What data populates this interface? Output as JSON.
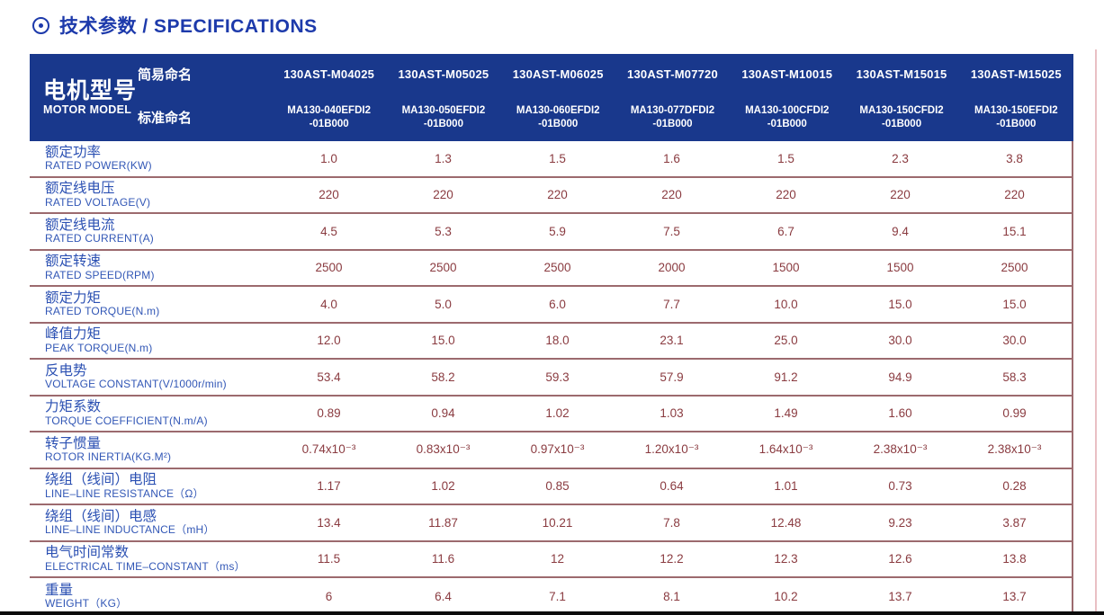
{
  "page": {
    "title": "技术参数 / SPECIFICATIONS"
  },
  "colors": {
    "header_bg": "#19388c",
    "title_blue": "#1d3aab",
    "label_blue": "#2c51b3",
    "value_maroon": "#8a3b40",
    "separator": "#9c6a6e"
  },
  "table": {
    "model_label_cn": "电机型号",
    "model_label_en": "MOTOR MODEL",
    "simple_name_label": "简易命名",
    "standard_name_label": "标准命名",
    "columns": [
      {
        "simple": "130AST-M04025",
        "standard_line1": "MA130-040EFDI2",
        "standard_line2": "-01B000"
      },
      {
        "simple": "130AST-M05025",
        "standard_line1": "MA130-050EFDI2",
        "standard_line2": "-01B000"
      },
      {
        "simple": "130AST-M06025",
        "standard_line1": "MA130-060EFDI2",
        "standard_line2": "-01B000"
      },
      {
        "simple": "130AST-M07720",
        "standard_line1": "MA130-077DFDI2",
        "standard_line2": "-01B000"
      },
      {
        "simple": "130AST-M10015",
        "standard_line1": "MA130-100CFDI2",
        "standard_line2": "-01B000"
      },
      {
        "simple": "130AST-M15015",
        "standard_line1": "MA130-150CFDI2",
        "standard_line2": "-01B000"
      },
      {
        "simple": "130AST-M15025",
        "standard_line1": "MA130-150EFDI2",
        "standard_line2": "-01B000"
      }
    ],
    "rows": [
      {
        "cn": "额定功率",
        "en": "RATED POWER(KW)",
        "values": [
          "1.0",
          "1.3",
          "1.5",
          "1.6",
          "1.5",
          "2.3",
          "3.8"
        ]
      },
      {
        "cn": "额定线电压",
        "en": "RATED VOLTAGE(V)",
        "values": [
          "220",
          "220",
          "220",
          "220",
          "220",
          "220",
          "220"
        ]
      },
      {
        "cn": "额定线电流",
        "en": "RATED CURRENT(A)",
        "values": [
          "4.5",
          "5.3",
          "5.9",
          "7.5",
          "6.7",
          "9.4",
          "15.1"
        ]
      },
      {
        "cn": "额定转速",
        "en": "RATED SPEED(RPM)",
        "values": [
          "2500",
          "2500",
          "2500",
          "2000",
          "1500",
          "1500",
          "2500"
        ]
      },
      {
        "cn": "额定力矩",
        "en": "RATED TORQUE(N.m)",
        "values": [
          "4.0",
          "5.0",
          "6.0",
          "7.7",
          "10.0",
          "15.0",
          "15.0"
        ]
      },
      {
        "cn": "峰值力矩",
        "en": "PEAK TORQUE(N.m)",
        "values": [
          "12.0",
          "15.0",
          "18.0",
          "23.1",
          "25.0",
          "30.0",
          "30.0"
        ]
      },
      {
        "cn": "反电势",
        "en": "VOLTAGE CONSTANT(V/1000r/min)",
        "values": [
          "53.4",
          "58.2",
          "59.3",
          "57.9",
          "91.2",
          "94.9",
          "58.3"
        ]
      },
      {
        "cn": "力矩系数",
        "en": "TORQUE COEFFICIENT(N.m/A)",
        "values": [
          "0.89",
          "0.94",
          "1.02",
          "1.03",
          "1.49",
          "1.60",
          "0.99"
        ]
      },
      {
        "cn": "转子惯量",
        "en": "ROTOR INERTIA(KG.M²)",
        "values": [
          "0.74x10⁻³",
          "0.83x10⁻³",
          "0.97x10⁻³",
          "1.20x10⁻³",
          "1.64x10⁻³",
          "2.38x10⁻³",
          "2.38x10⁻³"
        ]
      },
      {
        "cn": "绕组（线间）电阻",
        "en": "LINE–LINE RESISTANCE（Ω）",
        "values": [
          "1.17",
          "1.02",
          "0.85",
          "0.64",
          "1.01",
          "0.73",
          "0.28"
        ]
      },
      {
        "cn": "绕组（线间）电感",
        "en": "LINE–LINE INDUCTANCE（mH）",
        "values": [
          "13.4",
          "11.87",
          "10.21",
          "7.8",
          "12.48",
          "9.23",
          "3.87"
        ]
      },
      {
        "cn": "电气时间常数",
        "en": "ELECTRICAL TIME–CONSTANT（ms）",
        "values": [
          "11.5",
          "11.6",
          "12",
          "12.2",
          "12.3",
          "12.6",
          "13.8"
        ]
      },
      {
        "cn": "重量",
        "en": "WEIGHT（KG）",
        "values": [
          "6",
          "6.4",
          "7.1",
          "8.1",
          "10.2",
          "13.7",
          "13.7"
        ]
      }
    ]
  }
}
